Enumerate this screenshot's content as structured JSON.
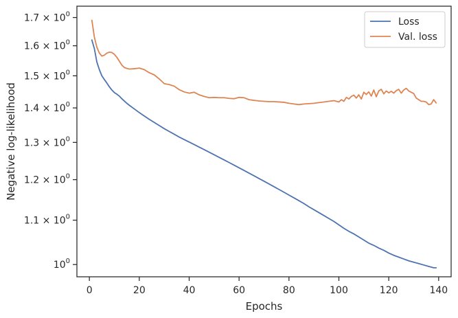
{
  "chart_data": {
    "type": "line",
    "title": "",
    "xlabel": "Epochs",
    "ylabel": "Negative log-likelihood",
    "xlim": [
      -5,
      145
    ],
    "ylim": [
      0.974,
      1.742
    ],
    "yscale": "log",
    "x_ticks": [
      {
        "value": 0,
        "label": "0"
      },
      {
        "value": 20,
        "label": "20"
      },
      {
        "value": 40,
        "label": "40"
      },
      {
        "value": 60,
        "label": "60"
      },
      {
        "value": 80,
        "label": "80"
      },
      {
        "value": 100,
        "label": "100"
      },
      {
        "value": 120,
        "label": "120"
      },
      {
        "value": 140,
        "label": "140"
      }
    ],
    "y_ticks": [
      {
        "value": 1.0,
        "mantissa": "10",
        "exp": "0"
      },
      {
        "value": 1.1,
        "mantissa": "1.1 × 10",
        "exp": "0"
      },
      {
        "value": 1.2,
        "mantissa": "1.2 × 10",
        "exp": "0"
      },
      {
        "value": 1.3,
        "mantissa": "1.3 × 10",
        "exp": "0"
      },
      {
        "value": 1.4,
        "mantissa": "1.4 × 10",
        "exp": "0"
      },
      {
        "value": 1.5,
        "mantissa": "1.5 × 10",
        "exp": "0"
      },
      {
        "value": 1.6,
        "mantissa": "1.6 × 10",
        "exp": "0"
      },
      {
        "value": 1.7,
        "mantissa": "1.7 × 10",
        "exp": "0"
      }
    ],
    "grid": false,
    "legend_position": "top-right",
    "series": [
      {
        "name": "Loss",
        "color": "#4c72b0",
        "x": [
          1,
          2,
          3,
          4,
          5,
          6,
          7,
          8,
          9,
          10,
          11,
          12,
          13,
          14,
          15,
          16,
          18,
          20,
          22,
          24,
          26,
          28,
          30,
          32,
          34,
          36,
          38,
          40,
          42,
          44,
          46,
          48,
          50,
          52,
          54,
          56,
          58,
          60,
          62,
          64,
          66,
          68,
          70,
          72,
          74,
          76,
          78,
          80,
          82,
          84,
          86,
          88,
          90,
          92,
          94,
          96,
          98,
          100,
          102,
          104,
          106,
          108,
          110,
          112,
          114,
          116,
          118,
          120,
          122,
          124,
          126,
          128,
          130,
          132,
          134,
          136,
          138,
          139
        ],
        "y": [
          1.62,
          1.59,
          1.545,
          1.52,
          1.5,
          1.488,
          1.477,
          1.465,
          1.455,
          1.447,
          1.442,
          1.436,
          1.428,
          1.421,
          1.414,
          1.408,
          1.397,
          1.386,
          1.376,
          1.366,
          1.357,
          1.348,
          1.339,
          1.331,
          1.323,
          1.315,
          1.308,
          1.301,
          1.294,
          1.287,
          1.28,
          1.273,
          1.266,
          1.259,
          1.252,
          1.245,
          1.238,
          1.231,
          1.224,
          1.217,
          1.21,
          1.203,
          1.196,
          1.189,
          1.182,
          1.175,
          1.168,
          1.161,
          1.154,
          1.147,
          1.14,
          1.132,
          1.125,
          1.118,
          1.111,
          1.104,
          1.097,
          1.089,
          1.081,
          1.074,
          1.068,
          1.061,
          1.054,
          1.047,
          1.042,
          1.036,
          1.031,
          1.025,
          1.02,
          1.016,
          1.012,
          1.008,
          1.005,
          1.002,
          0.999,
          0.996,
          0.993,
          0.993
        ]
      },
      {
        "name": "Val. loss",
        "color": "#dd8452",
        "x": [
          1,
          2,
          3,
          4,
          5,
          6,
          7,
          8,
          9,
          10,
          11,
          12,
          13,
          14,
          15,
          16,
          18,
          20,
          22,
          24,
          26,
          28,
          30,
          32,
          34,
          36,
          38,
          40,
          42,
          44,
          46,
          48,
          50,
          52,
          54,
          56,
          58,
          60,
          62,
          64,
          66,
          68,
          70,
          72,
          74,
          76,
          78,
          80,
          82,
          84,
          86,
          88,
          90,
          92,
          94,
          96,
          98,
          100,
          101,
          102,
          103,
          104,
          105,
          106,
          107,
          108,
          109,
          110,
          111,
          112,
          113,
          114,
          115,
          116,
          117,
          118,
          119,
          120,
          121,
          122,
          123,
          124,
          125,
          126,
          127,
          128,
          129,
          130,
          131,
          132,
          133,
          134,
          135,
          136,
          137,
          138,
          139
        ],
        "y": [
          1.69,
          1.63,
          1.595,
          1.575,
          1.565,
          1.568,
          1.575,
          1.578,
          1.577,
          1.571,
          1.561,
          1.548,
          1.535,
          1.527,
          1.524,
          1.522,
          1.523,
          1.525,
          1.52,
          1.51,
          1.503,
          1.49,
          1.475,
          1.472,
          1.467,
          1.456,
          1.449,
          1.445,
          1.448,
          1.44,
          1.435,
          1.431,
          1.432,
          1.431,
          1.431,
          1.429,
          1.428,
          1.432,
          1.431,
          1.425,
          1.423,
          1.421,
          1.42,
          1.419,
          1.419,
          1.418,
          1.417,
          1.414,
          1.412,
          1.41,
          1.412,
          1.413,
          1.414,
          1.416,
          1.418,
          1.42,
          1.422,
          1.418,
          1.425,
          1.42,
          1.432,
          1.427,
          1.435,
          1.439,
          1.43,
          1.44,
          1.427,
          1.448,
          1.441,
          1.449,
          1.436,
          1.455,
          1.434,
          1.452,
          1.457,
          1.443,
          1.452,
          1.446,
          1.451,
          1.445,
          1.453,
          1.457,
          1.445,
          1.455,
          1.46,
          1.452,
          1.448,
          1.444,
          1.43,
          1.425,
          1.42,
          1.42,
          1.418,
          1.41,
          1.412,
          1.425,
          1.415
        ]
      }
    ]
  }
}
